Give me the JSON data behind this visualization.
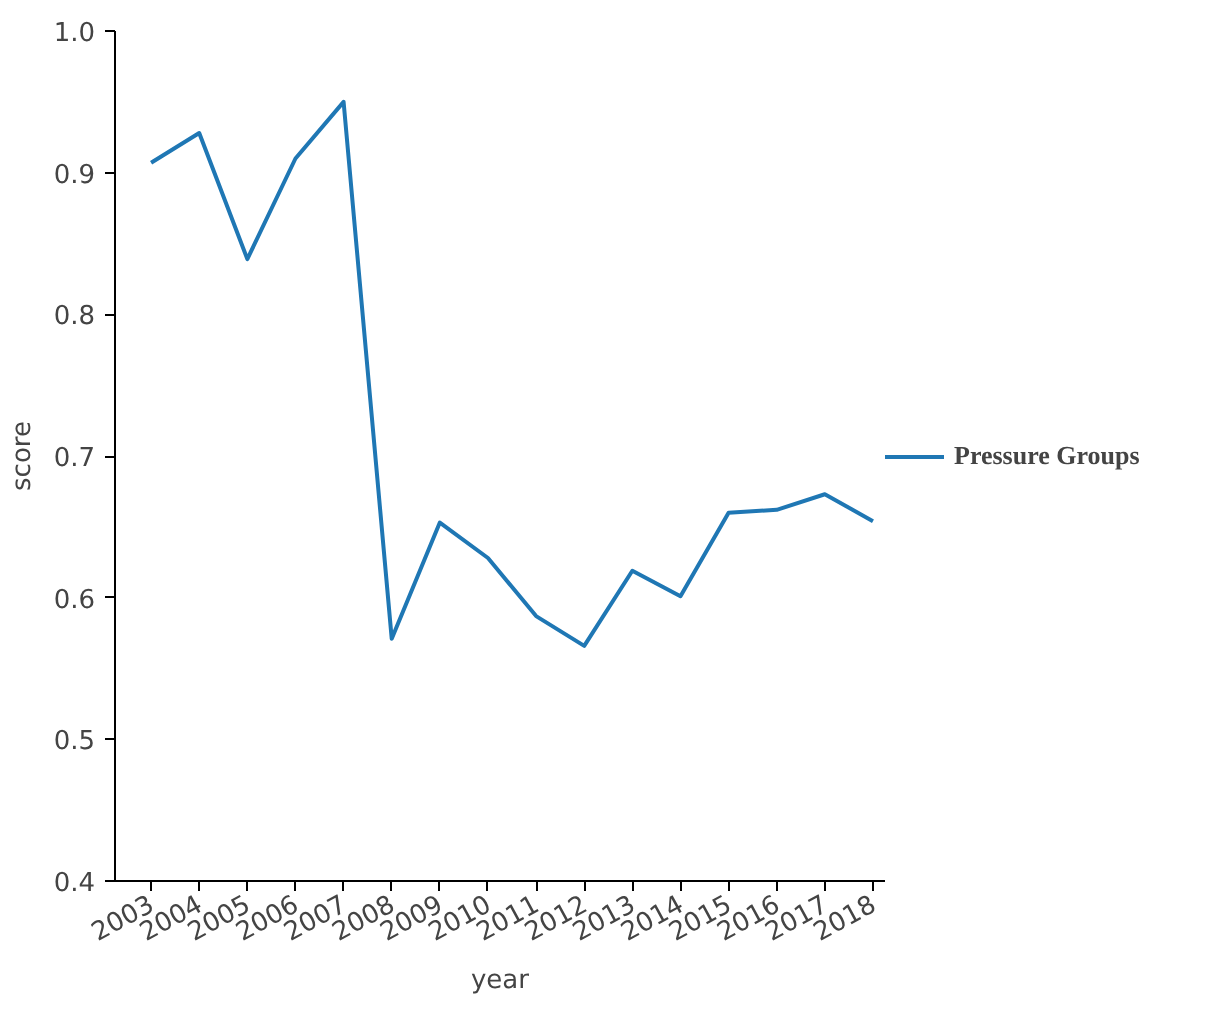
{
  "chart_data": {
    "type": "line",
    "xlabel": "year",
    "ylabel": "score",
    "categories": [
      "2003",
      "2004",
      "2005",
      "2006",
      "2007",
      "2008",
      "2009",
      "2010",
      "2011",
      "2012",
      "2013",
      "2014",
      "2015",
      "2016",
      "2017",
      "2018"
    ],
    "series": [
      {
        "name": "Pressure Groups",
        "color": "#1f77b4",
        "values": [
          0.907,
          0.928,
          0.839,
          0.91,
          0.95,
          0.571,
          0.653,
          0.628,
          0.587,
          0.566,
          0.619,
          0.601,
          0.66,
          0.662,
          0.673,
          0.654
        ]
      }
    ],
    "ylim": [
      0.4,
      1.0
    ],
    "yticks": [
      0.4,
      0.5,
      0.6,
      0.7,
      0.8,
      0.9,
      {
        "value": 1.0,
        "label": "1.0"
      }
    ],
    "grid": false,
    "legend": "right",
    "marker": "none",
    "line_style": "solid"
  }
}
